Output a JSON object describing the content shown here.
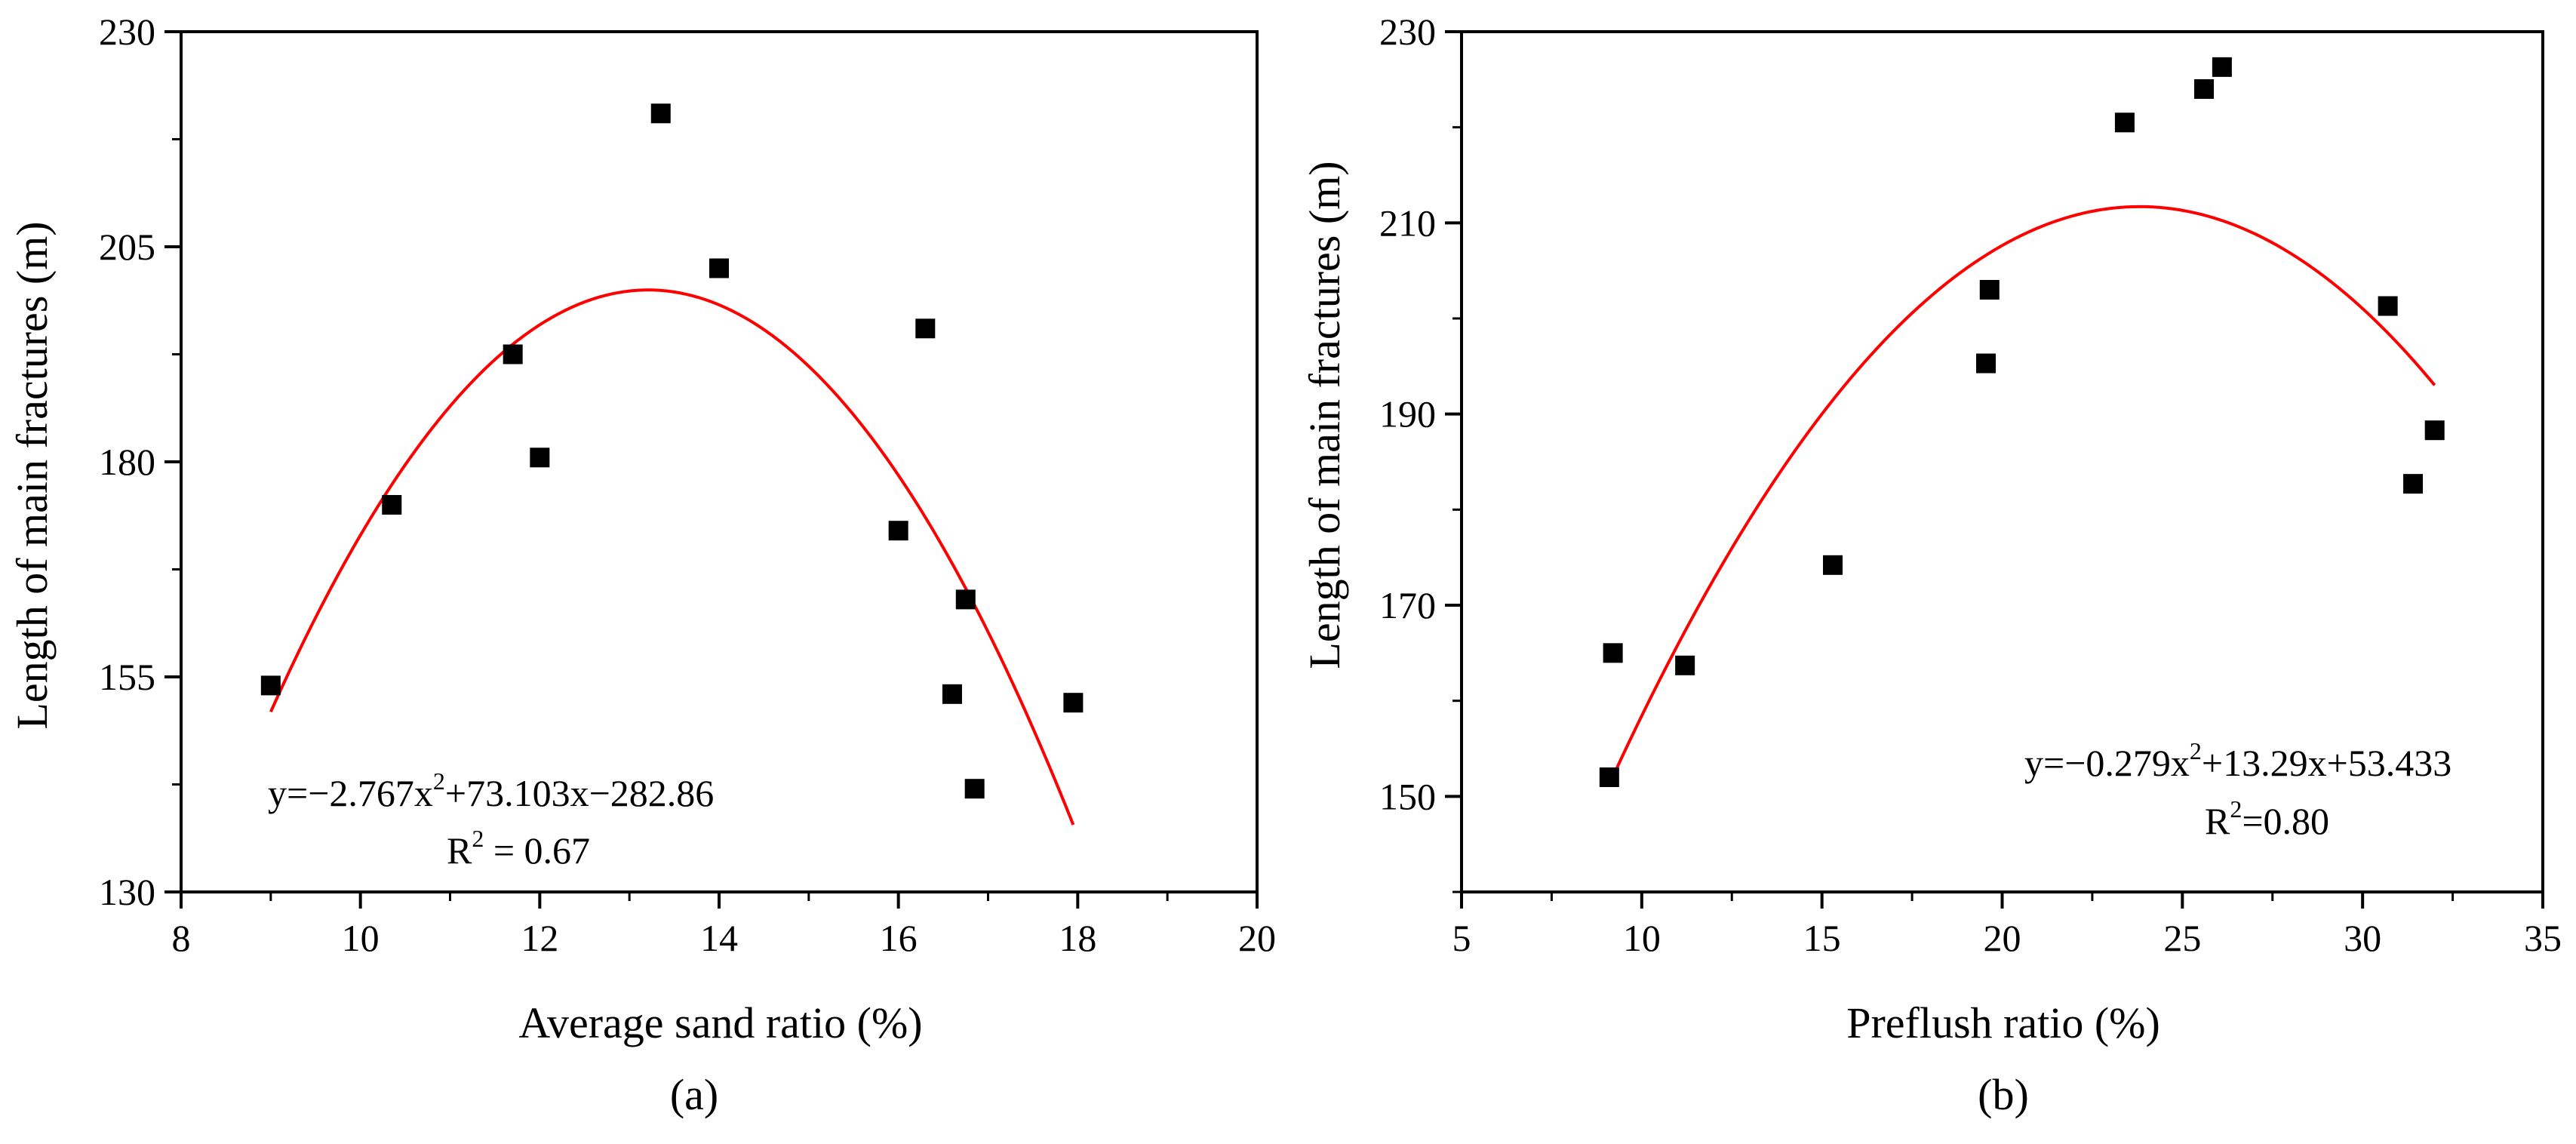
{
  "chart_data": [
    {
      "type": "scatter",
      "panel_label": "(a)",
      "xlabel": "Average sand ratio (%)",
      "ylabel": "Length of main fractures (m)",
      "xlim": [
        8,
        20
      ],
      "ylim": [
        130,
        230
      ],
      "xticks": [
        8,
        10,
        12,
        14,
        16,
        18,
        20
      ],
      "yticks": [
        130,
        155,
        180,
        205,
        230
      ],
      "series": [
        {
          "name": "data",
          "marker": "square",
          "color": "#000000",
          "points": [
            [
              9.0,
              154.0
            ],
            [
              10.35,
              175.0
            ],
            [
              11.7,
              192.5
            ],
            [
              12.0,
              180.5
            ],
            [
              13.35,
              220.5
            ],
            [
              14.0,
              202.5
            ],
            [
              16.0,
              172.0
            ],
            [
              16.3,
              195.5
            ],
            [
              16.6,
              153.0
            ],
            [
              16.75,
              164.0
            ],
            [
              16.85,
              142.0
            ],
            [
              17.95,
              152.0
            ]
          ]
        }
      ],
      "fit": {
        "a": -2.767,
        "b": 73.103,
        "c": -282.86,
        "x_range": [
          9.0,
          17.95
        ],
        "color": "#ff0000"
      },
      "equation": {
        "prefix": "y=−2.767x",
        "exp": "2",
        "suffix": "+73.103x−282.86"
      },
      "r2": {
        "base": "R",
        "exp": "2",
        "value": " = 0.67"
      }
    },
    {
      "type": "scatter",
      "panel_label": "(b)",
      "xlabel": "Preflush ratio (%)",
      "ylabel": "Length of main fractures (m)",
      "xlim": [
        5,
        35
      ],
      "ylim": [
        140,
        230
      ],
      "xticks": [
        5,
        10,
        15,
        20,
        25,
        30,
        35
      ],
      "yticks": [
        150,
        170,
        190,
        210,
        230
      ],
      "series": [
        {
          "name": "data",
          "marker": "square",
          "color": "#000000",
          "points": [
            [
              9.1,
              152.0
            ],
            [
              9.2,
              165.0
            ],
            [
              11.2,
              163.7
            ],
            [
              15.3,
              174.2
            ],
            [
              19.55,
              195.3
            ],
            [
              19.65,
              203.0
            ],
            [
              23.4,
              220.5
            ],
            [
              25.6,
              224.0
            ],
            [
              26.1,
              226.3
            ],
            [
              30.7,
              201.3
            ],
            [
              31.4,
              182.7
            ],
            [
              32.0,
              188.3
            ]
          ]
        }
      ],
      "fit": {
        "a": -0.279,
        "b": 13.29,
        "c": 53.433,
        "x_range": [
          9.1,
          32.0
        ],
        "color": "#ff0000"
      },
      "equation": {
        "prefix": "y=−0.279x",
        "exp": "2",
        "suffix": "+13.29x+53.433"
      },
      "r2": {
        "base": "R",
        "exp": "2",
        "value": "=0.80"
      }
    }
  ]
}
